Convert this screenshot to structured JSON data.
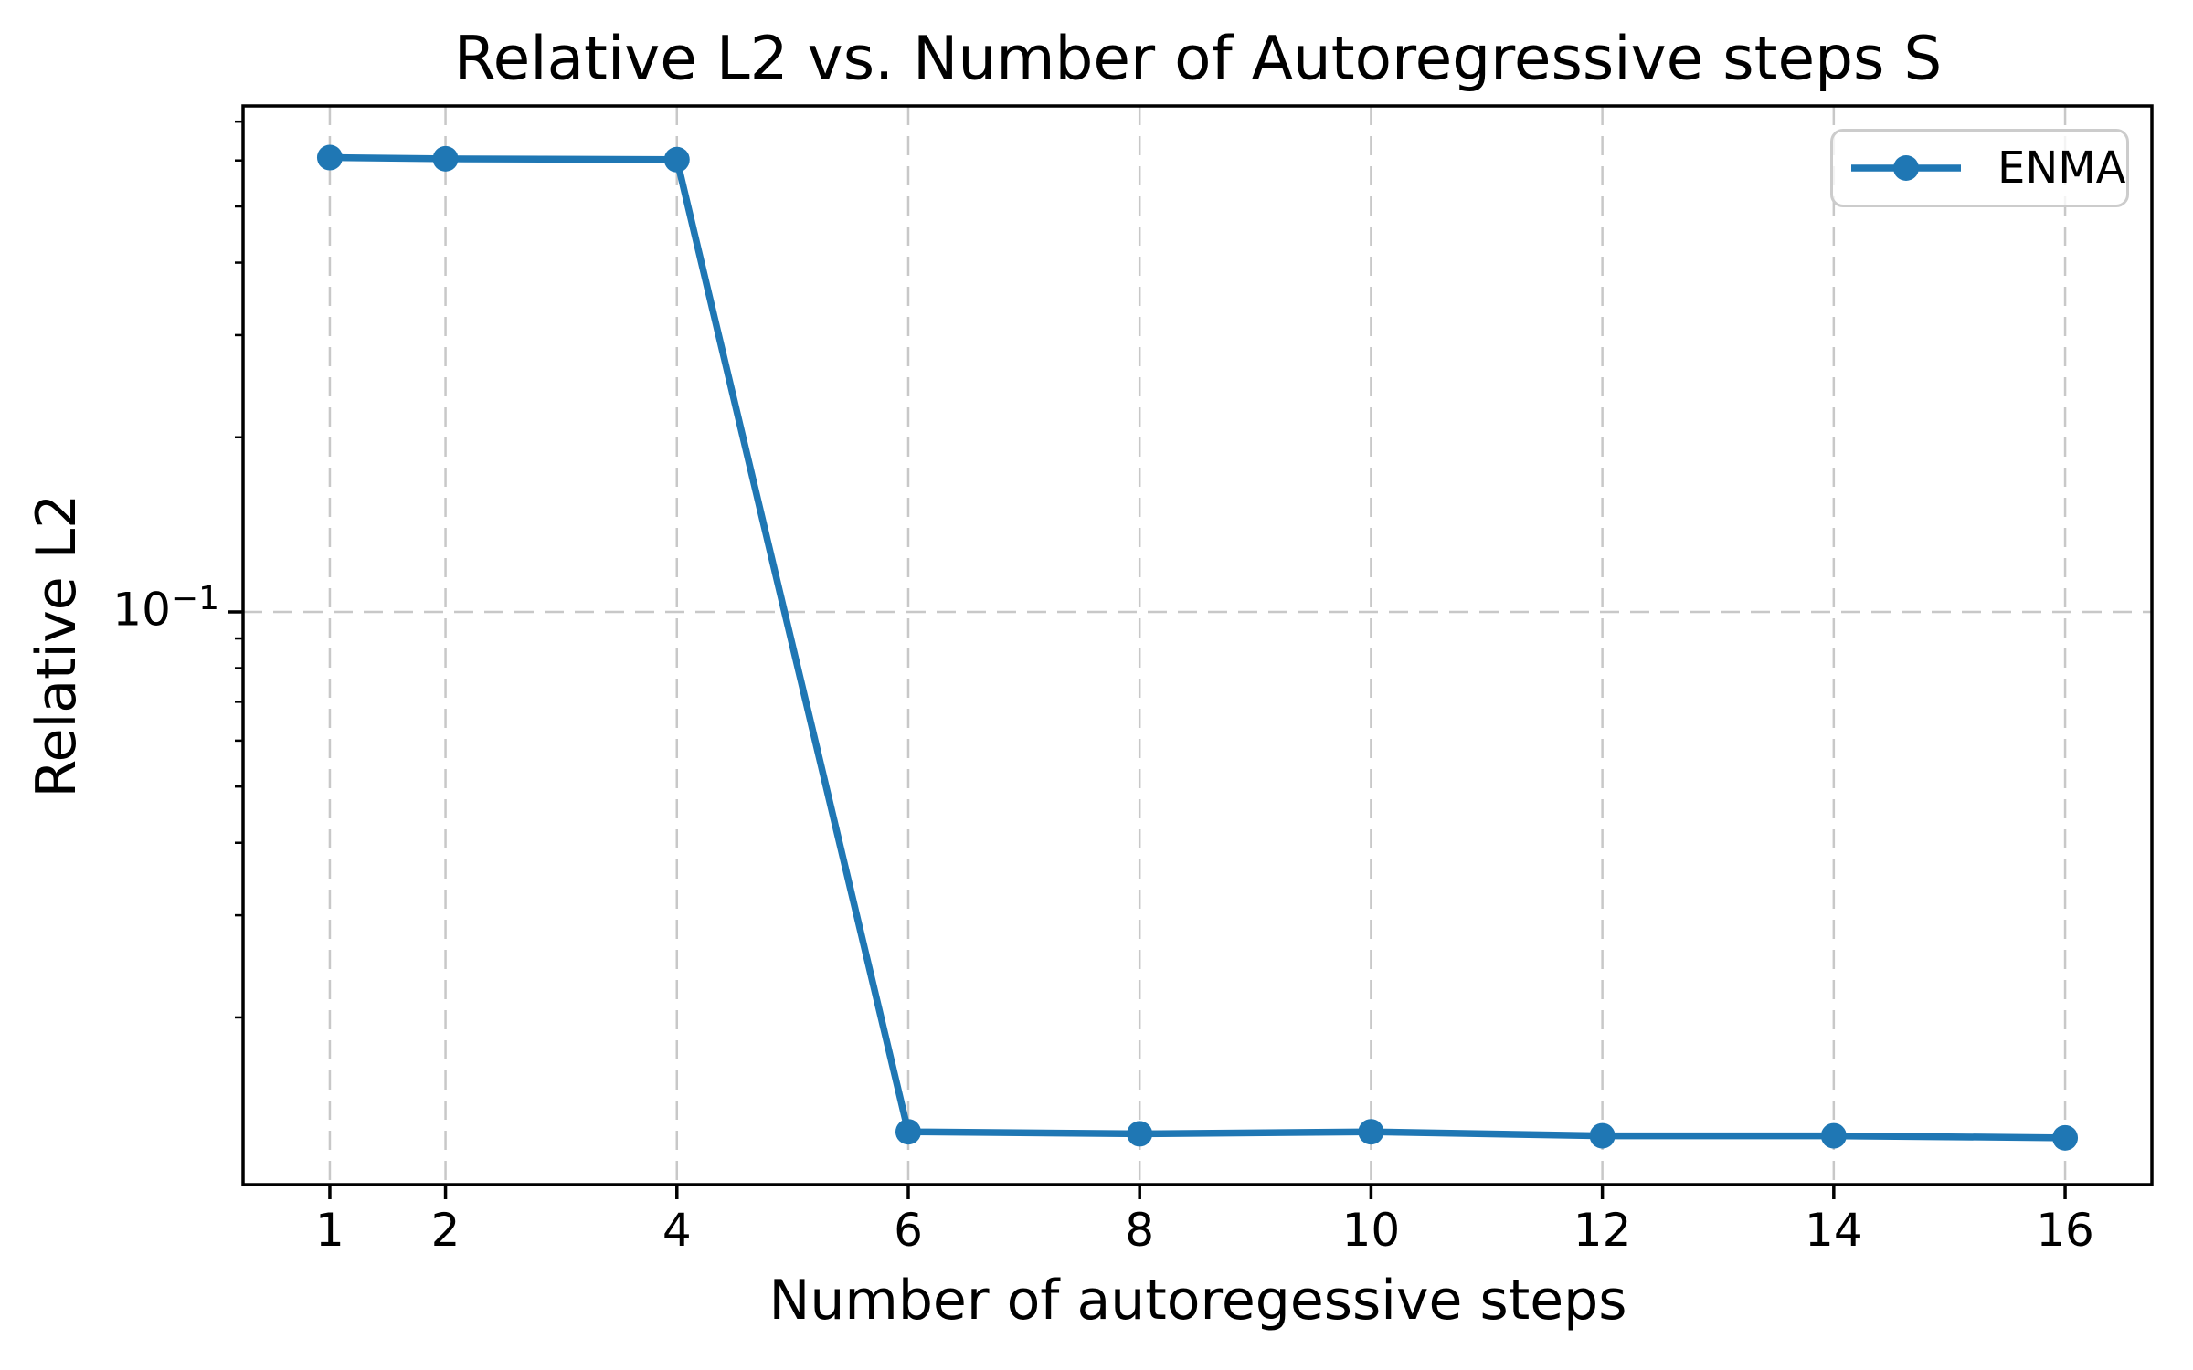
{
  "chart_data": {
    "type": "line",
    "title": "Relative L2 vs. Number of Autoregressive steps S",
    "xlabel": "Number of autoregessive steps",
    "ylabel": "Relative L2",
    "x_scale": "linear",
    "y_scale": "log",
    "x": [
      1,
      2,
      4,
      6,
      8,
      10,
      12,
      14,
      16
    ],
    "series": [
      {
        "name": "ENMA",
        "color": "#1f77b4",
        "values": [
          0.607,
          0.604,
          0.602,
          0.0127,
          0.0126,
          0.0127,
          0.0125,
          0.0125,
          0.0124
        ]
      }
    ],
    "x_ticks": [
      1,
      2,
      4,
      6,
      8,
      10,
      12,
      14,
      16
    ],
    "x_tick_labels": [
      "1",
      "2",
      "4",
      "6",
      "8",
      "10",
      "12",
      "14",
      "16"
    ],
    "y_tick": {
      "value": 0.1,
      "base": "10",
      "exponent": "−1"
    },
    "xlim": [
      0.25,
      16.75
    ],
    "ylim": [
      0.0103,
      0.745
    ],
    "grid": true,
    "grid_linestyle": "dashed",
    "legend_position": "upper right",
    "colors": {
      "line": "#1f77b4",
      "grid": "#c8c8c8",
      "axis": "#000000",
      "legend_border": "#cccccc",
      "background": "#ffffff"
    }
  }
}
